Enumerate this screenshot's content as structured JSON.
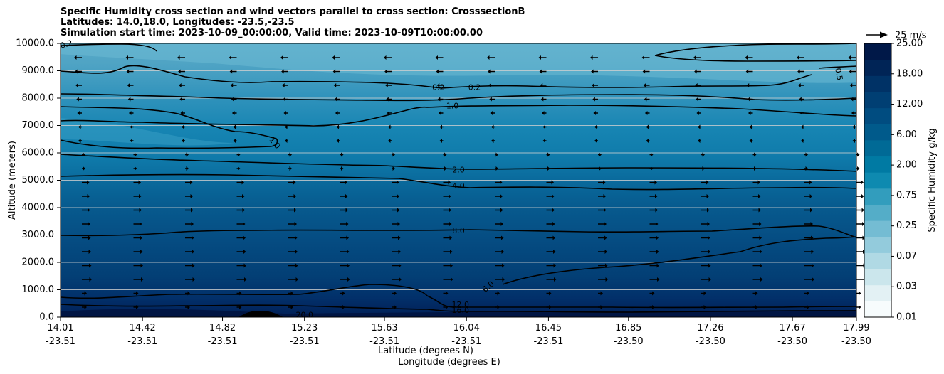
{
  "chart_data": {
    "type": "heatmap",
    "title_lines": [
      "Specific Humidity cross section and wind vectors parallel to cross section: CrosssectionB",
      "Latitudes: 14.0,18.0, Longitudes: -23.5,-23.5",
      "Simulation start time: 2023-10-09_00:00:00, Valid time: 2023-10-09T10:00:00.00"
    ],
    "ylabel": "Altitude (meters)",
    "xlabel_lat": "Latitude (degrees N)",
    "xlabel_lon": "Longitude (degrees E)",
    "ylim": [
      0,
      10000
    ],
    "y_ticks": [
      "0.0",
      "1000.0",
      "2000.0",
      "3000.0",
      "4000.0",
      "5000.0",
      "6000.0",
      "7000.0",
      "8000.0",
      "9000.0",
      "10000.0"
    ],
    "y_tick_values": [
      0,
      1000,
      2000,
      3000,
      4000,
      5000,
      6000,
      7000,
      8000,
      9000,
      10000
    ],
    "x_ticks": [
      {
        "lat": "14.01",
        "lon": "-23.51"
      },
      {
        "lat": "14.42",
        "lon": "-23.51"
      },
      {
        "lat": "14.82",
        "lon": "-23.51"
      },
      {
        "lat": "15.23",
        "lon": "-23.51"
      },
      {
        "lat": "15.63",
        "lon": "-23.51"
      },
      {
        "lat": "16.04",
        "lon": "-23.51"
      },
      {
        "lat": "16.45",
        "lon": "-23.51"
      },
      {
        "lat": "16.85",
        "lon": "-23.50"
      },
      {
        "lat": "17.26",
        "lon": "-23.50"
      },
      {
        "lat": "17.67",
        "lon": "-23.50"
      },
      {
        "lat": "17.99",
        "lon": "-23.50"
      }
    ],
    "x_tick_values": [
      14.01,
      14.42,
      14.82,
      15.23,
      15.63,
      16.04,
      16.45,
      16.85,
      17.26,
      17.67,
      17.99
    ],
    "xlim": [
      14.01,
      17.99
    ],
    "colorbar": {
      "label": "Specific Humidity g/kg",
      "tick_labels": [
        "0.01",
        "0.03",
        "0.07",
        "0.25",
        "0.75",
        "2.00",
        "6.00",
        "12.00",
        "18.00",
        "25.00"
      ],
      "colors": [
        "#f7fcfd",
        "#e3f1f4",
        "#cbe6ec",
        "#b0d9e4",
        "#93cbdc",
        "#74bcd3",
        "#54adc8",
        "#329dbd",
        "#0e8ab0",
        "#007aa3",
        "#006a96",
        "#005a8b",
        "#004c80",
        "#003f73",
        "#003266",
        "#002456",
        "#001848"
      ]
    },
    "quiver_key": {
      "label": "25 m/s",
      "speed": 25
    },
    "contour_labels": [
      {
        "text": "0.2",
        "lat": 14.04,
        "alt": 9950,
        "rot": -15
      },
      {
        "text": "0.2",
        "lat": 15.9,
        "alt": 8380,
        "rot": 0
      },
      {
        "text": "0.2",
        "lat": 16.08,
        "alt": 8380,
        "rot": 0
      },
      {
        "text": "0.5",
        "lat": 17.9,
        "alt": 8870,
        "rot": 80
      },
      {
        "text": "1.0",
        "lat": 15.97,
        "alt": 7700,
        "rot": 0
      },
      {
        "text": "1.0",
        "lat": 15.08,
        "alt": 6350,
        "rot": 50
      },
      {
        "text": "2.0",
        "lat": 16.0,
        "alt": 5360,
        "rot": 0
      },
      {
        "text": "4.0",
        "lat": 16.0,
        "alt": 4780,
        "rot": 0
      },
      {
        "text": "8.0",
        "lat": 16.0,
        "alt": 3140,
        "rot": 0
      },
      {
        "text": "6.0",
        "lat": 16.15,
        "alt": 1100,
        "rot": -40
      },
      {
        "text": "12.0",
        "lat": 16.01,
        "alt": 440,
        "rot": 0
      },
      {
        "text": "16.0",
        "lat": 16.01,
        "alt": 240,
        "rot": 0
      },
      {
        "text": "20.0",
        "lat": 15.23,
        "alt": 60,
        "rot": 0
      }
    ]
  }
}
